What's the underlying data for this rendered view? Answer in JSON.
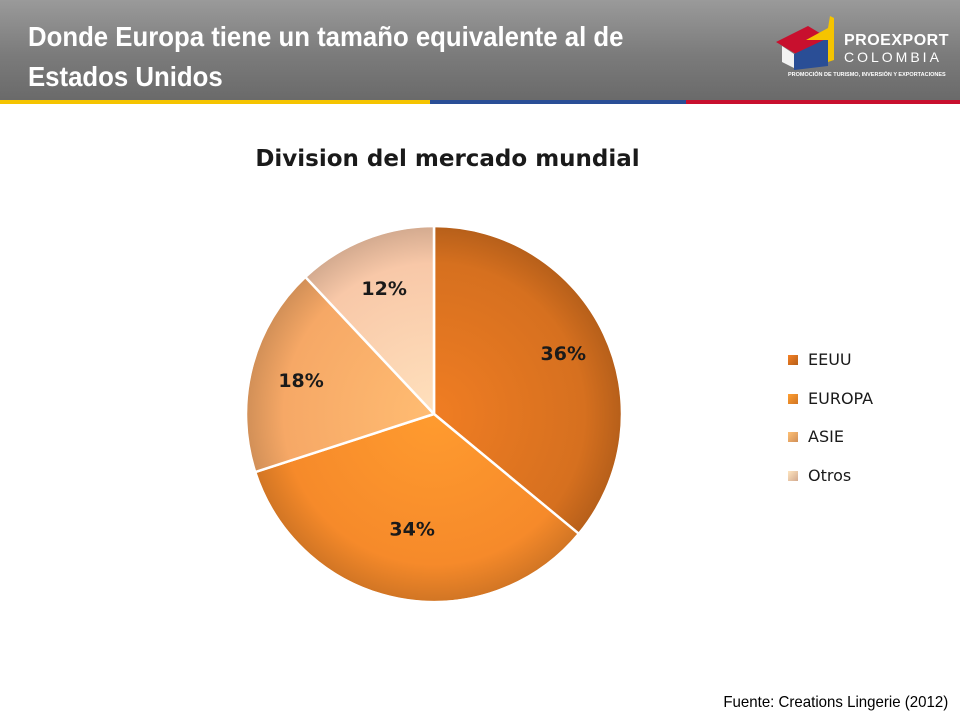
{
  "header": {
    "title": "Donde Europa tiene un tamaño equivalente al de Estados Unidos"
  },
  "logo": {
    "name": "PROEXPORT",
    "country": "COLOMBIA",
    "tagline": "PROMOCIÓN DE TURISMO, INVERSIÓN Y EXPORTACIONES"
  },
  "chart_data": {
    "type": "pie",
    "title": "Division del mercado mundial",
    "categories": [
      "EEUU",
      "EUROPA",
      "ASIE",
      "Otros"
    ],
    "values": [
      36,
      34,
      18,
      12
    ],
    "value_labels": [
      "36%",
      "34%",
      "18%",
      "12%"
    ],
    "colors": [
      "#d6701f",
      "#f68a2a",
      "#f6a866",
      "#f8c8a8"
    ],
    "legend_position": "right",
    "start": "12 o'clock, clockwise"
  },
  "source": "Fuente: Creations Lingerie (2012)"
}
